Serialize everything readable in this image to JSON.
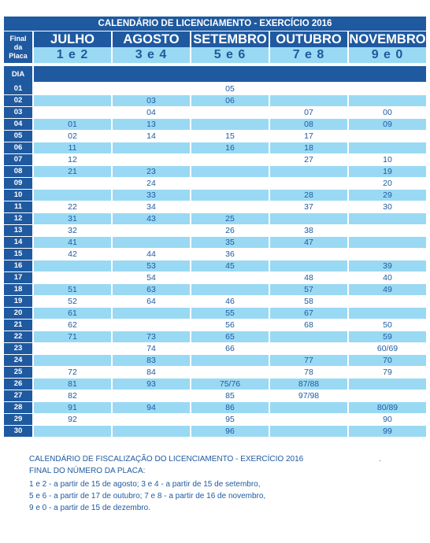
{
  "title": "CALENDÁRIO DE LICENCIAMENTO - EXERCÍCIO 2016",
  "header_label": [
    "Final",
    "da",
    "Placa"
  ],
  "months": [
    "JULHO",
    "AGOSTO",
    "SETEMBRO",
    "OUTUBRO",
    "NOVEMBRO"
  ],
  "plates": [
    "1 e 2",
    "3 e 4",
    "5 e 6",
    "7 e 8",
    "9 e 0"
  ],
  "dia_label": "DIA",
  "rows": [
    {
      "day": "01",
      "v": [
        "",
        "",
        "05",
        "",
        ""
      ]
    },
    {
      "day": "02",
      "v": [
        "",
        "03",
        "06",
        "",
        ""
      ]
    },
    {
      "day": "03",
      "v": [
        "",
        "04",
        "",
        "07",
        "00"
      ]
    },
    {
      "day": "04",
      "v": [
        "01",
        "13",
        "",
        "08",
        "09"
      ]
    },
    {
      "day": "05",
      "v": [
        "02",
        "14",
        "15",
        "17",
        ""
      ]
    },
    {
      "day": "06",
      "v": [
        "11",
        "",
        "16",
        "18",
        ""
      ]
    },
    {
      "day": "07",
      "v": [
        "12",
        "",
        "",
        "27",
        "10"
      ]
    },
    {
      "day": "08",
      "v": [
        "21",
        "23",
        "",
        "",
        "19"
      ]
    },
    {
      "day": "09",
      "v": [
        "",
        "24",
        "",
        "",
        "20"
      ]
    },
    {
      "day": "10",
      "v": [
        "",
        "33",
        "",
        "28",
        "29"
      ]
    },
    {
      "day": "11",
      "v": [
        "22",
        "34",
        "",
        "37",
        "30"
      ]
    },
    {
      "day": "12",
      "v": [
        "31",
        "43",
        "25",
        "",
        ""
      ]
    },
    {
      "day": "13",
      "v": [
        "32",
        "",
        "26",
        "38",
        ""
      ]
    },
    {
      "day": "14",
      "v": [
        "41",
        "",
        "35",
        "47",
        ""
      ]
    },
    {
      "day": "15",
      "v": [
        "42",
        "44",
        "36",
        "",
        ""
      ]
    },
    {
      "day": "16",
      "v": [
        "",
        "53",
        "45",
        "",
        "39"
      ]
    },
    {
      "day": "17",
      "v": [
        "",
        "54",
        "",
        "48",
        "40"
      ]
    },
    {
      "day": "18",
      "v": [
        "51",
        "63",
        "",
        "57",
        "49"
      ]
    },
    {
      "day": "19",
      "v": [
        "52",
        "64",
        "46",
        "58",
        ""
      ]
    },
    {
      "day": "20",
      "v": [
        "61",
        "",
        "55",
        "67",
        ""
      ]
    },
    {
      "day": "21",
      "v": [
        "62",
        "",
        "56",
        "68",
        "50"
      ]
    },
    {
      "day": "22",
      "v": [
        "71",
        "73",
        "65",
        "",
        "59"
      ]
    },
    {
      "day": "23",
      "v": [
        "",
        "74",
        "66",
        "",
        "60/69"
      ]
    },
    {
      "day": "24",
      "v": [
        "",
        "83",
        "",
        "77",
        "70"
      ]
    },
    {
      "day": "25",
      "v": [
        "72",
        "84",
        "",
        "78",
        "79"
      ]
    },
    {
      "day": "26",
      "v": [
        "81",
        "93",
        "75/76",
        "87/88",
        ""
      ]
    },
    {
      "day": "27",
      "v": [
        "82",
        "",
        "85",
        "97/98",
        ""
      ]
    },
    {
      "day": "28",
      "v": [
        "91",
        "94",
        "86",
        "",
        "80/89"
      ]
    },
    {
      "day": "29",
      "v": [
        "92",
        "",
        "95",
        "",
        "90"
      ]
    },
    {
      "day": "30",
      "v": [
        "",
        "",
        "96",
        "",
        "99"
      ]
    }
  ],
  "notes": {
    "title": "CALENDÁRIO DE FISCALIZAÇÃO DO LICENCIAMENTO - EXERCÍCIO 2016",
    "dot": ".",
    "subtitle": "FINAL DO NÚMERO DA PLACA:",
    "lines": [
      "1 e 2 - a partir de 15 de agosto; 3 e 4 - a partir de 15 de setembro,",
      "5 e 6 - a partir de 17 de outubro; 7 e 8 - a partir de 16 de novembro,",
      "9 e 0 - a partir de 15 de dezembro."
    ]
  },
  "colors": {
    "dark_blue": "#1f5aa0",
    "light_blue": "#9ad9f3",
    "white": "#ffffff"
  }
}
